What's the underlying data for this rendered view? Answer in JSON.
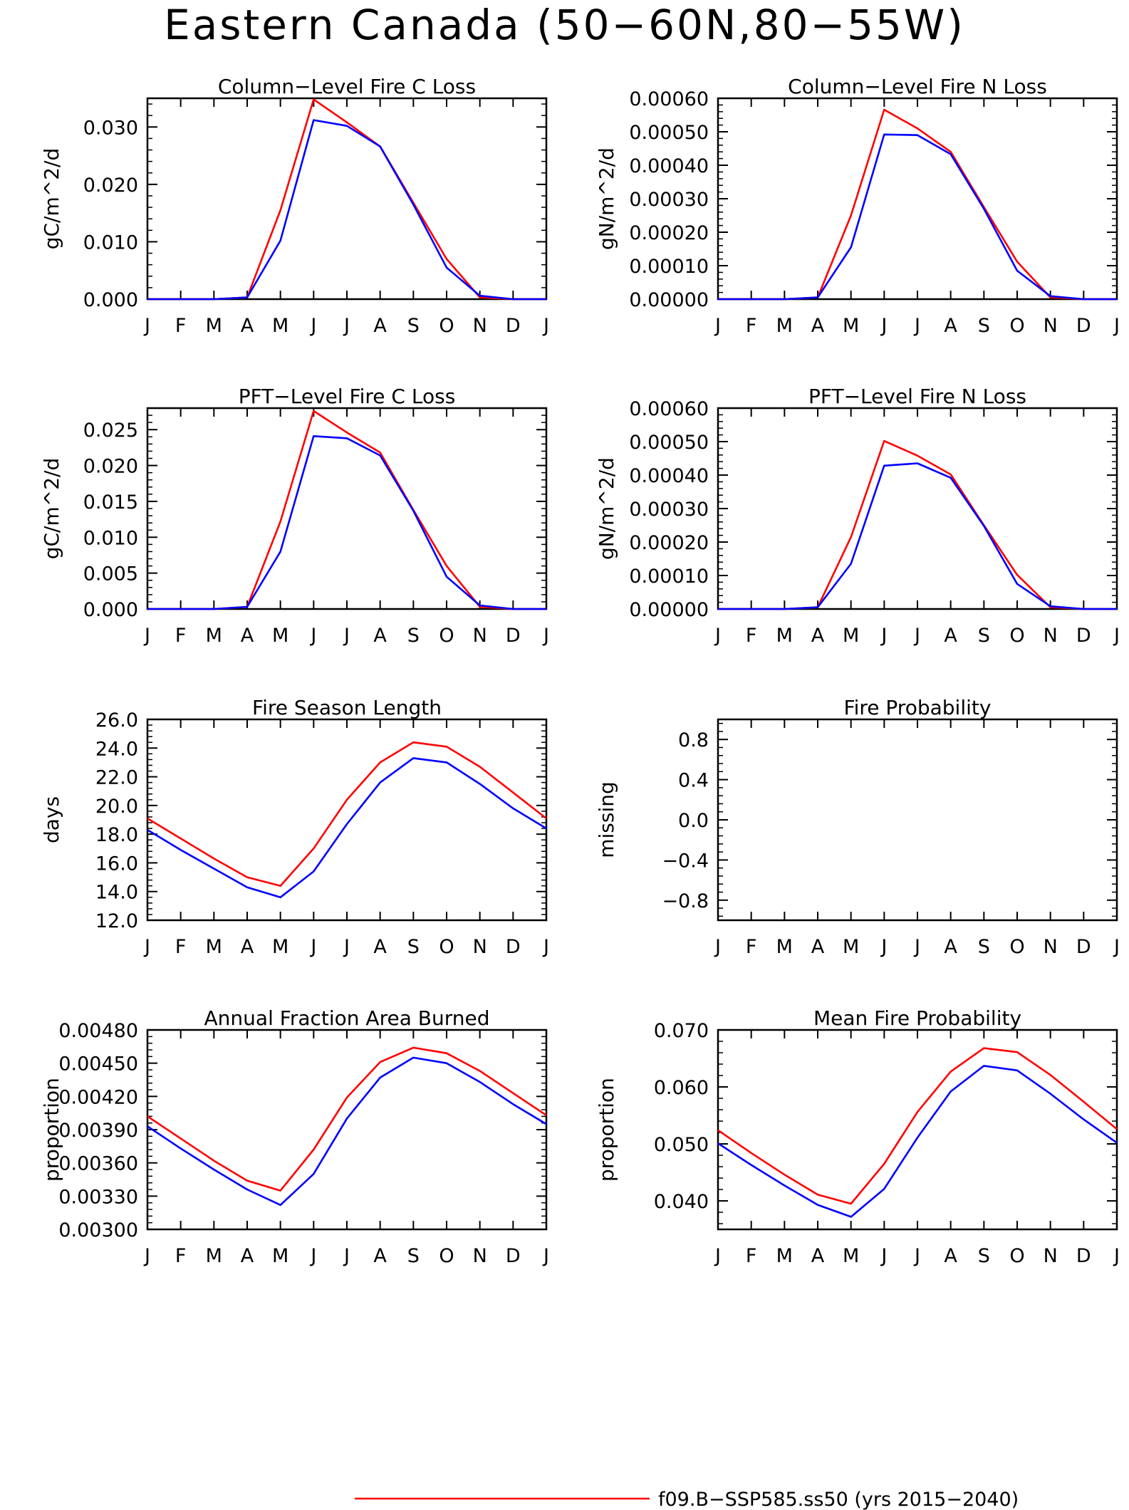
{
  "figure": {
    "title": "Eastern Canada (50−60N,80−55W)",
    "months": [
      "J",
      "F",
      "M",
      "A",
      "M",
      "J",
      "J",
      "A",
      "S",
      "O",
      "N",
      "D",
      "J"
    ],
    "series_colors": {
      "red": "#ff0000",
      "blue": "#0000ff"
    },
    "legend_partial": "f09.B−SSP585.ss50 (yrs 2015−2040)"
  },
  "chart_data": [
    {
      "type": "line",
      "title": "Column−Level Fire C Loss",
      "ylabel": "gC/m^2/d",
      "ylim": [
        0,
        0.035
      ],
      "yticks": [
        0,
        0.01,
        0.02,
        0.03
      ],
      "ytick_labels": [
        "0.000",
        "0.010",
        "0.020",
        "0.030"
      ],
      "series": [
        {
          "color": "#ff0000",
          "values": [
            0,
            0,
            0,
            0.0003,
            0.0155,
            0.0348,
            0.0308,
            0.0266,
            0.0168,
            0.007,
            0.0003,
            0,
            0
          ]
        },
        {
          "color": "#0000ff",
          "values": [
            0,
            0,
            0,
            0.0003,
            0.0102,
            0.0312,
            0.0302,
            0.0266,
            0.0165,
            0.0055,
            0.0006,
            0,
            0
          ]
        }
      ]
    },
    {
      "type": "line",
      "title": "Column−Level Fire N Loss",
      "ylabel": "gN/m^2/d",
      "ylim": [
        0,
        0.0006
      ],
      "yticks": [
        0,
        0.0001,
        0.0002,
        0.0003,
        0.0004,
        0.0005,
        0.0006
      ],
      "ytick_labels": [
        "0.00000",
        "0.00010",
        "0.00020",
        "0.00030",
        "0.00040",
        "0.00050",
        "0.00060"
      ],
      "series": [
        {
          "color": "#ff0000",
          "values": [
            0,
            0,
            0,
            5e-06,
            0.00025,
            0.000566,
            0.00051,
            0.00044,
            0.000275,
            0.000112,
            5e-06,
            0,
            0
          ]
        },
        {
          "color": "#0000ff",
          "values": [
            0,
            0,
            0,
            5e-06,
            0.000155,
            0.000492,
            0.00049,
            0.000433,
            0.00027,
            8.5e-05,
            9e-06,
            0,
            0
          ]
        }
      ]
    },
    {
      "type": "line",
      "title": "PFT−Level Fire C Loss",
      "ylabel": "gC/m^2/d",
      "ylim": [
        0,
        0.028
      ],
      "yticks": [
        0,
        0.005,
        0.01,
        0.015,
        0.02,
        0.025
      ],
      "ytick_labels": [
        "0.000",
        "0.005",
        "0.010",
        "0.015",
        "0.020",
        "0.025"
      ],
      "series": [
        {
          "color": "#ff0000",
          "values": [
            0,
            0,
            0,
            0.0003,
            0.0122,
            0.0276,
            0.0246,
            0.0218,
            0.0138,
            0.006,
            0.0003,
            0,
            0
          ]
        },
        {
          "color": "#0000ff",
          "values": [
            0,
            0,
            0,
            0.0003,
            0.008,
            0.0241,
            0.0238,
            0.0214,
            0.0137,
            0.0045,
            0.0005,
            0,
            0
          ]
        }
      ]
    },
    {
      "type": "line",
      "title": "PFT−Level Fire N Loss",
      "ylabel": "gN/m^2/d",
      "ylim": [
        0,
        0.0006
      ],
      "yticks": [
        0,
        0.0001,
        0.0002,
        0.0003,
        0.0004,
        0.0005,
        0.0006
      ],
      "ytick_labels": [
        "0.00000",
        "0.00010",
        "0.00020",
        "0.00030",
        "0.00040",
        "0.00050",
        "0.00060"
      ],
      "series": [
        {
          "color": "#ff0000",
          "values": [
            0,
            0,
            0,
            5e-06,
            0.000215,
            0.000502,
            0.000458,
            0.000402,
            0.00025,
            0.000102,
            5e-06,
            0,
            0
          ]
        },
        {
          "color": "#0000ff",
          "values": [
            0,
            0,
            0,
            5e-06,
            0.000135,
            0.000428,
            0.000435,
            0.000392,
            0.000248,
            7.5e-05,
            8e-06,
            0,
            0
          ]
        }
      ]
    },
    {
      "type": "line",
      "title": "Fire Season Length",
      "ylabel": "days",
      "ylim": [
        12,
        26
      ],
      "yticks": [
        12,
        14,
        16,
        18,
        20,
        22,
        24,
        26
      ],
      "ytick_labels": [
        "12.0",
        "14.0",
        "16.0",
        "18.0",
        "20.0",
        "22.0",
        "24.0",
        "26.0"
      ],
      "series": [
        {
          "color": "#ff0000",
          "values": [
            19.1,
            17.7,
            16.3,
            15.0,
            14.4,
            17.0,
            20.4,
            23.0,
            24.4,
            24.1,
            22.7,
            20.9,
            19.1
          ]
        },
        {
          "color": "#0000ff",
          "values": [
            18.3,
            16.9,
            15.6,
            14.3,
            13.6,
            15.4,
            18.7,
            21.6,
            23.3,
            23.0,
            21.5,
            19.8,
            18.4
          ]
        }
      ]
    },
    {
      "type": "line",
      "title": "Fire Probability",
      "ylabel": "missing",
      "ylim": [
        -1,
        1
      ],
      "yticks": [
        -0.8,
        -0.4,
        0,
        0.4,
        0.8
      ],
      "ytick_labels": [
        "−0.8",
        "−0.4",
        "0.0",
        "0.4",
        "0.8"
      ],
      "series": []
    },
    {
      "type": "line",
      "title": "Annual Fraction Area Burned",
      "ylabel": "proportion",
      "ylim": [
        0.003,
        0.0048
      ],
      "yticks": [
        0.003,
        0.0033,
        0.0036,
        0.0039,
        0.0042,
        0.0045,
        0.0048
      ],
      "ytick_labels": [
        "0.00300",
        "0.00330",
        "0.00360",
        "0.00390",
        "0.00420",
        "0.00450",
        "0.00480"
      ],
      "series": [
        {
          "color": "#ff0000",
          "values": [
            0.00402,
            0.00382,
            0.00362,
            0.00344,
            0.00335,
            0.00372,
            0.00419,
            0.00451,
            0.00464,
            0.00459,
            0.00443,
            0.00423,
            0.00403
          ]
        },
        {
          "color": "#0000ff",
          "values": [
            0.00393,
            0.00373,
            0.00354,
            0.00336,
            0.00322,
            0.0035,
            0.004,
            0.00437,
            0.00455,
            0.0045,
            0.00433,
            0.00413,
            0.00395
          ]
        }
      ]
    },
    {
      "type": "line",
      "title": "Mean Fire Probability",
      "ylabel": "proportion",
      "ylim": [
        0.035,
        0.07
      ],
      "yticks": [
        0.04,
        0.05,
        0.06,
        0.07
      ],
      "ytick_labels": [
        "0.040",
        "0.050",
        "0.060",
        "0.070"
      ],
      "series": [
        {
          "color": "#ff0000",
          "values": [
            0.0524,
            0.0484,
            0.0446,
            0.0411,
            0.0395,
            0.0465,
            0.0556,
            0.0627,
            0.0668,
            0.0661,
            0.0621,
            0.0574,
            0.0526
          ]
        },
        {
          "color": "#0000ff",
          "values": [
            0.0501,
            0.0463,
            0.0427,
            0.0393,
            0.0372,
            0.0421,
            0.0511,
            0.0592,
            0.0637,
            0.0629,
            0.0588,
            0.0543,
            0.0502
          ]
        }
      ]
    }
  ]
}
